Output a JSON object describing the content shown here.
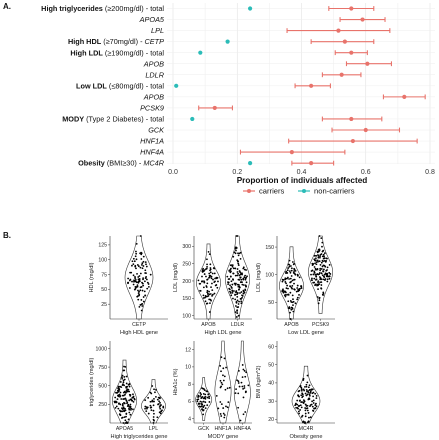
{
  "panel_a_label": "A.",
  "panel_b_label": "B.",
  "chart_data": [
    {
      "type": "scatter",
      "panel": "A",
      "xlabel": "Proportion of individuals affected",
      "xlim": [
        0,
        0.8
      ],
      "xticks": [
        "0.0",
        "0.2",
        "0.4",
        "0.6",
        "0.8"
      ],
      "legend": {
        "placement": "bottom",
        "entries": [
          "carriers",
          "non-carriers"
        ]
      },
      "colors": {
        "carriers": "#e8736b",
        "non_carriers": "#2bbcb8"
      },
      "rows": [
        {
          "parts": [
            {
              "t": "High triglycerides",
              "s": "b"
            },
            {
              "t": " (≥200mg/dl) - total",
              "s": "n"
            }
          ],
          "carrier": 0.555,
          "lo": 0.485,
          "hi": 0.625,
          "noncarrier": 0.24
        },
        {
          "parts": [
            {
              "t": "APOA5",
              "s": "i"
            }
          ],
          "carrier": 0.59,
          "lo": 0.52,
          "hi": 0.66
        },
        {
          "parts": [
            {
              "t": "LPL",
              "s": "i"
            }
          ],
          "carrier": 0.515,
          "lo": 0.355,
          "hi": 0.675
        },
        {
          "parts": [
            {
              "t": "High HDL",
              "s": "b"
            },
            {
              "t": " (≥70mg/dl) - ",
              "s": "n"
            },
            {
              "t": "CETP",
              "s": "i"
            }
          ],
          "carrier": 0.535,
          "lo": 0.43,
          "hi": 0.625,
          "noncarrier": 0.17
        },
        {
          "parts": [
            {
              "t": "High LDL",
              "s": "b"
            },
            {
              "t": " (≥190mg/dl) - total",
              "s": "n"
            }
          ],
          "carrier": 0.555,
          "lo": 0.505,
          "hi": 0.605,
          "noncarrier": 0.085
        },
        {
          "parts": [
            {
              "t": "APOB",
              "s": "i"
            }
          ],
          "carrier": 0.605,
          "lo": 0.54,
          "hi": 0.68
        },
        {
          "parts": [
            {
              "t": "LDLR",
              "s": "i"
            }
          ],
          "carrier": 0.525,
          "lo": 0.465,
          "hi": 0.585
        },
        {
          "parts": [
            {
              "t": "Low LDL",
              "s": "b"
            },
            {
              "t": " (≤80mg/dl) - total",
              "s": "n"
            }
          ],
          "carrier": 0.43,
          "lo": 0.38,
          "hi": 0.49,
          "noncarrier": 0.01
        },
        {
          "parts": [
            {
              "t": "APOB",
              "s": "i"
            }
          ],
          "carrier": 0.72,
          "lo": 0.655,
          "hi": 0.785
        },
        {
          "parts": [
            {
              "t": "PCSK9",
              "s": "i"
            }
          ],
          "carrier": 0.13,
          "lo": 0.08,
          "hi": 0.185
        },
        {
          "parts": [
            {
              "t": "MODY",
              "s": "b"
            },
            {
              "t": " (Type 2 Diabetes) - total",
              "s": "n"
            }
          ],
          "carrier": 0.555,
          "lo": 0.465,
          "hi": 0.65,
          "noncarrier": 0.06
        },
        {
          "parts": [
            {
              "t": "GCK",
              "s": "i"
            }
          ],
          "carrier": 0.6,
          "lo": 0.495,
          "hi": 0.705
        },
        {
          "parts": [
            {
              "t": "HNF1A",
              "s": "i"
            }
          ],
          "carrier": 0.56,
          "lo": 0.36,
          "hi": 0.76
        },
        {
          "parts": [
            {
              "t": "HNF4A",
              "s": "i"
            }
          ],
          "carrier": 0.37,
          "lo": 0.21,
          "hi": 0.535
        },
        {
          "parts": [
            {
              "t": "Obesity",
              "s": "b"
            },
            {
              "t": " (BMI≥30) - ",
              "s": "n"
            },
            {
              "t": "MC4R",
              "s": "i"
            }
          ],
          "carrier": 0.43,
          "lo": 0.37,
          "hi": 0.5,
          "noncarrier": 0.24
        }
      ]
    },
    {
      "type": "scatter",
      "subtype": "violin",
      "panel": "B",
      "panels": [
        {
          "ylabel": "HDL (mg/dl)",
          "xlabel": "High HDL gene",
          "ylim": [
            0,
            140
          ],
          "yticks": [
            25,
            50,
            75,
            100,
            125
          ],
          "groups": [
            {
              "name": "CETP",
              "center": 70,
              "spread": 28,
              "n": 110
            }
          ]
        },
        {
          "ylabel": "LDL (mg/dl)",
          "xlabel": "High LDL gene",
          "ylim": [
            90,
            330
          ],
          "yticks": [
            100,
            150,
            200,
            250,
            300
          ],
          "groups": [
            {
              "name": "APOB",
              "center": 195,
              "spread": 35,
              "n": 90
            },
            {
              "name": "LDLR",
              "center": 205,
              "spread": 45,
              "n": 150
            }
          ]
        },
        {
          "ylabel": "LDL (mg/dl)",
          "xlabel": "Low LDL gene",
          "ylim": [
            20,
            170
          ],
          "yticks": [
            50,
            100,
            150
          ],
          "groups": [
            {
              "name": "APOB",
              "center": 80,
              "spread": 22,
              "n": 110
            },
            {
              "name": "PCSK9",
              "center": 105,
              "spread": 25,
              "n": 150
            }
          ]
        },
        {
          "ylabel": "triglycerides (mg/dl)",
          "xlabel": "High triglycerides gene",
          "ylim": [
            0,
            1100
          ],
          "yticks": [
            250,
            500,
            750,
            1000
          ],
          "groups": [
            {
              "name": "APOA5",
              "center": 300,
              "spread": 170,
              "n": 150
            },
            {
              "name": "LPL",
              "center": 230,
              "spread": 110,
              "n": 55
            }
          ]
        },
        {
          "ylabel": "HbA1c (%)",
          "xlabel": "MODY gene",
          "ylim": [
            3.5,
            13
          ],
          "yticks": [
            4,
            6,
            8,
            10,
            12
          ],
          "groups": [
            {
              "name": "GCK",
              "center": 6.2,
              "spread": 0.8,
              "n": 55
            },
            {
              "name": "HNF1A",
              "center": 7.2,
              "spread": 2.2,
              "n": 30
            },
            {
              "name": "HNF4A",
              "center": 7,
              "spread": 2.0,
              "n": 28
            }
          ]
        },
        {
          "ylabel": "BMI (kg/m^2)",
          "xlabel": "Obesity gene",
          "ylim": [
            18,
            63
          ],
          "yticks": [
            20,
            30,
            40,
            50,
            60
          ],
          "groups": [
            {
              "name": "MC4R",
              "center": 30,
              "spread": 6,
              "n": 120
            }
          ]
        }
      ]
    }
  ]
}
